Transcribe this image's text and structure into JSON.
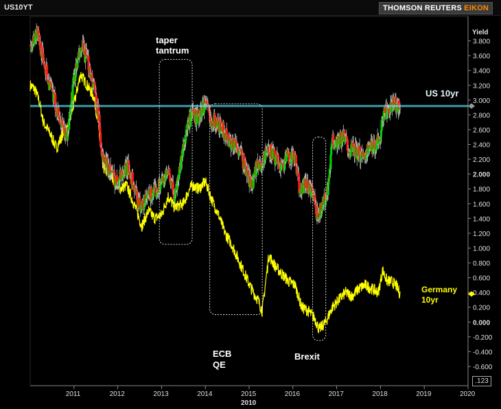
{
  "header": {
    "ticker": "US10YT",
    "brand_primary": "THOMSON REUTERS",
    "brand_accent": "EIKON",
    "corner_box": ".123"
  },
  "colors": {
    "background": "#000000",
    "up": "#00d000",
    "down": "#ff1a1a",
    "wick": "#bdbdbd",
    "germany": "#ffff00",
    "ref_line": "#5fe8ff",
    "annotation_box": "#dddddd"
  },
  "chart_data": {
    "type": "line",
    "ylabel": "Yield",
    "ylim": [
      -0.6,
      4.0
    ],
    "xlim": [
      2010.0,
      2020.0
    ],
    "x_ticks": [
      "2011",
      "2012",
      "2013",
      "2014",
      "2015",
      "2016",
      "2017",
      "2018",
      "2019",
      "2020"
    ],
    "x_tick_values": [
      2011,
      2012,
      2013,
      2014,
      2015,
      2016,
      2017,
      2018,
      2019,
      2020
    ],
    "x_subtitle": "2010",
    "y_ticks": [
      "3.800",
      "3.600",
      "3.400",
      "3.200",
      "3.000",
      "2.800",
      "2.600",
      "2.400",
      "2.200",
      "2.000",
      "1.800",
      "1.600",
      "1.400",
      "1.200",
      "1.000",
      "0.800",
      "0.600",
      "0.400",
      "0.200",
      "0.000",
      "-0.200",
      "-0.400",
      "-0.600"
    ],
    "y_tick_values": [
      3.8,
      3.6,
      3.4,
      3.2,
      3.0,
      2.8,
      2.6,
      2.4,
      2.2,
      2.0,
      1.8,
      1.6,
      1.4,
      1.2,
      1.0,
      0.8,
      0.6,
      0.4,
      0.2,
      0.0,
      -0.2,
      -0.4,
      -0.6
    ],
    "horizontal_line": {
      "value": 2.92,
      "label": "US 10yr"
    },
    "series": [
      {
        "name": "US 10yr",
        "x": [
          2010.0,
          2010.1,
          2010.15,
          2010.3,
          2010.45,
          2010.6,
          2010.75,
          2010.85,
          2011.0,
          2011.1,
          2011.2,
          2011.35,
          2011.45,
          2011.55,
          2011.65,
          2011.8,
          2011.95,
          2012.1,
          2012.25,
          2012.4,
          2012.55,
          2012.7,
          2012.85,
          2013.0,
          2013.15,
          2013.3,
          2013.45,
          2013.55,
          2013.7,
          2013.85,
          2014.0,
          2014.1,
          2014.25,
          2014.4,
          2014.55,
          2014.7,
          2014.85,
          2015.05,
          2015.15,
          2015.3,
          2015.45,
          2015.6,
          2015.75,
          2015.9,
          2016.05,
          2016.15,
          2016.3,
          2016.45,
          2016.55,
          2016.65,
          2016.8,
          2016.9,
          2017.0,
          2017.15,
          2017.3,
          2017.45,
          2017.6,
          2017.75,
          2017.9,
          2018.0,
          2018.1,
          2018.2,
          2018.3,
          2018.4,
          2018.45
        ],
        "values": [
          3.75,
          3.85,
          3.95,
          3.55,
          3.2,
          2.9,
          2.6,
          2.5,
          3.3,
          3.55,
          3.7,
          3.45,
          3.2,
          2.85,
          2.2,
          2.1,
          1.9,
          2.0,
          2.1,
          1.75,
          1.55,
          1.7,
          1.75,
          1.9,
          2.0,
          1.7,
          2.2,
          2.55,
          2.8,
          2.75,
          3.0,
          2.75,
          2.7,
          2.6,
          2.45,
          2.4,
          2.2,
          1.85,
          2.05,
          2.15,
          2.35,
          2.2,
          2.1,
          2.25,
          2.2,
          1.8,
          1.85,
          1.75,
          1.45,
          1.55,
          1.75,
          2.45,
          2.45,
          2.5,
          2.35,
          2.3,
          2.25,
          2.35,
          2.4,
          2.55,
          2.85,
          2.85,
          2.95,
          2.9,
          2.95
        ]
      },
      {
        "name": "Germany 10yr",
        "x": [
          2010.0,
          2010.1,
          2010.2,
          2010.3,
          2010.45,
          2010.6,
          2010.75,
          2010.85,
          2011.0,
          2011.15,
          2011.3,
          2011.45,
          2011.55,
          2011.65,
          2011.8,
          2011.95,
          2012.05,
          2012.2,
          2012.4,
          2012.55,
          2012.7,
          2012.85,
          2013.0,
          2013.15,
          2013.3,
          2013.5,
          2013.6,
          2013.7,
          2013.85,
          2014.0,
          2014.15,
          2014.3,
          2014.45,
          2014.6,
          2014.75,
          2014.9,
          2015.05,
          2015.2,
          2015.3,
          2015.45,
          2015.6,
          2015.75,
          2015.9,
          2016.05,
          2016.2,
          2016.35,
          2016.5,
          2016.6,
          2016.75,
          2016.9,
          2017.05,
          2017.2,
          2017.35,
          2017.5,
          2017.65,
          2017.8,
          2017.95,
          2018.05,
          2018.15,
          2018.25,
          2018.35,
          2018.45
        ],
        "values": [
          3.2,
          3.15,
          3.0,
          2.7,
          2.55,
          2.35,
          2.55,
          2.6,
          2.95,
          3.35,
          3.2,
          3.05,
          2.7,
          2.1,
          2.0,
          1.9,
          1.8,
          1.85,
          1.55,
          1.3,
          1.5,
          1.4,
          1.45,
          1.7,
          1.55,
          1.6,
          1.75,
          1.85,
          1.8,
          1.9,
          1.65,
          1.45,
          1.2,
          1.05,
          0.85,
          0.65,
          0.45,
          0.3,
          0.15,
          0.9,
          0.75,
          0.65,
          0.55,
          0.5,
          0.2,
          0.15,
          0.05,
          -0.1,
          0.0,
          0.2,
          0.3,
          0.4,
          0.35,
          0.45,
          0.5,
          0.45,
          0.4,
          0.7,
          0.55,
          0.55,
          0.5,
          0.38
        ]
      }
    ],
    "annotations": [
      {
        "text_lines": [
          "taper",
          "tantrum"
        ],
        "x_range": [
          2012.95,
          2013.7
        ],
        "y_range": [
          1.05,
          3.55
        ]
      },
      {
        "text_lines": [
          "ECB",
          "QE"
        ],
        "x_range": [
          2014.1,
          2015.3
        ],
        "y_range": [
          0.1,
          2.95
        ]
      },
      {
        "text_lines": [
          "Brexit"
        ],
        "x_range": [
          2016.45,
          2016.75
        ],
        "y_range": [
          -0.25,
          2.5
        ]
      }
    ],
    "side_labels": [
      {
        "series": "US 10yr",
        "text_lines": [
          "US 10yr"
        ]
      },
      {
        "series": "Germany 10yr",
        "text_lines": [
          "Germany",
          "10yr"
        ]
      }
    ]
  }
}
